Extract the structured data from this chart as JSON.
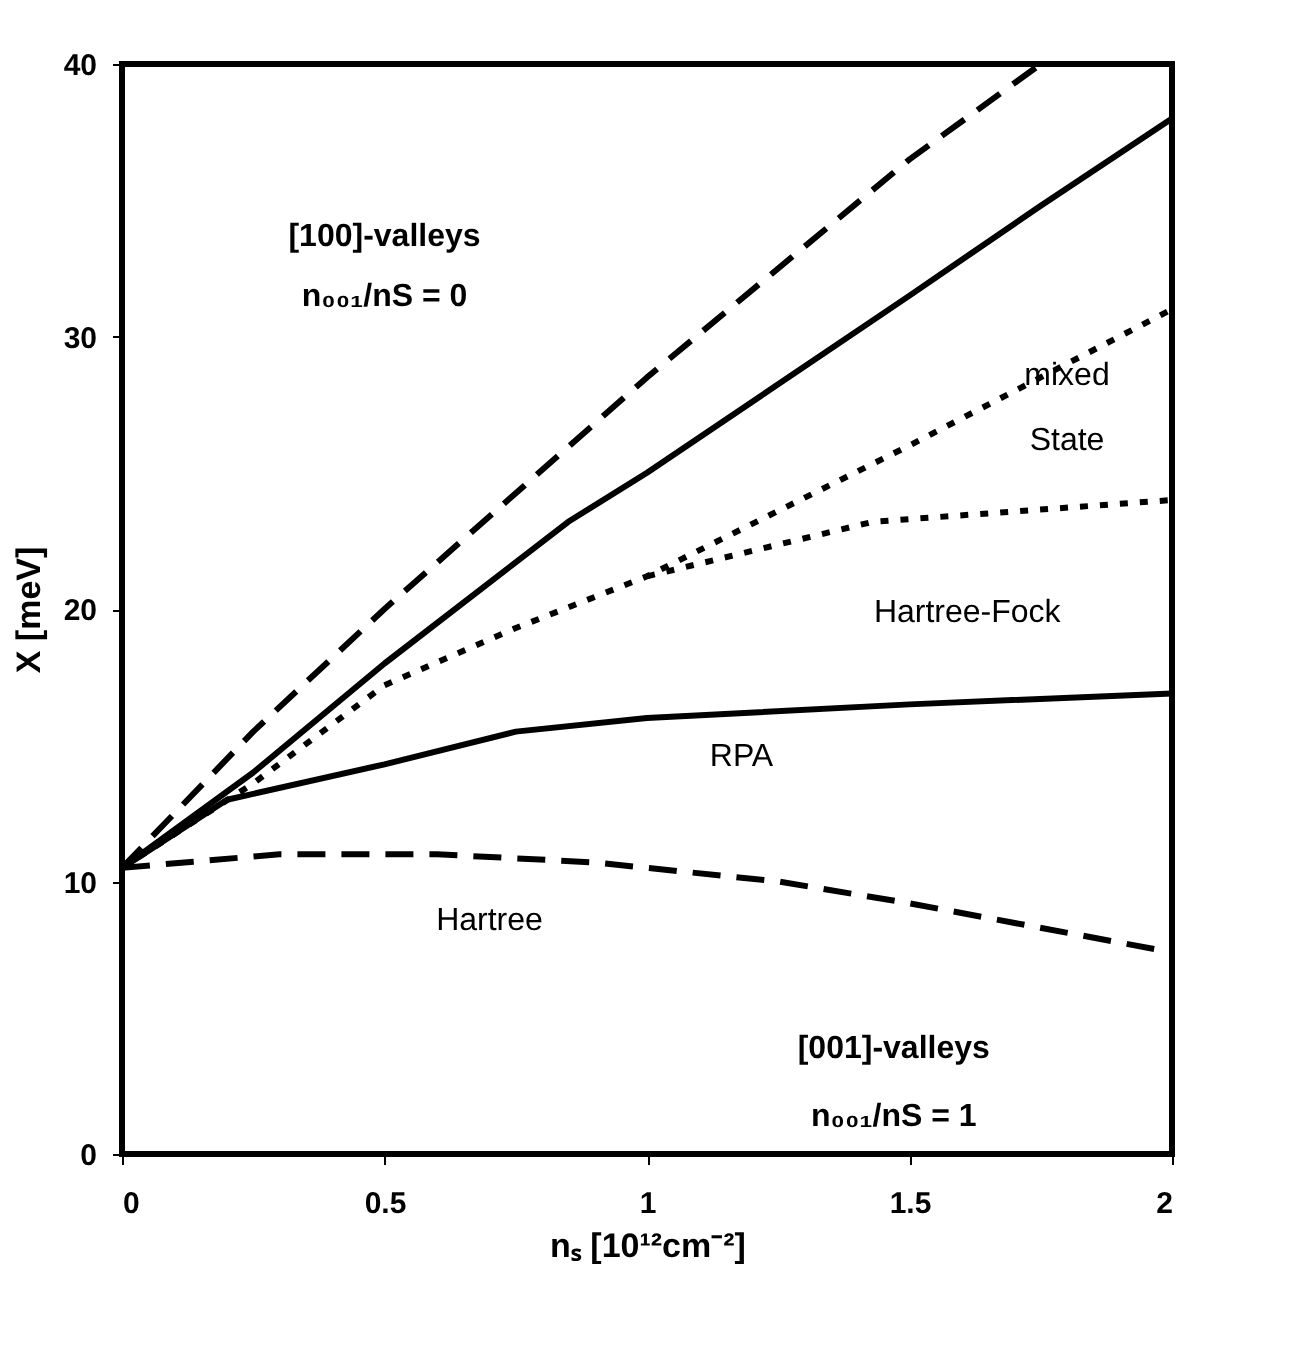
{
  "chart_data": {
    "type": "line",
    "xlabel": "nₛ [10¹²cm⁻²]",
    "ylabel": "X [meV]",
    "xlim": [
      0,
      2
    ],
    "xticks": [
      0,
      0.5,
      1,
      1.5,
      2
    ],
    "ylim": [
      0,
      40
    ],
    "yticks": [
      0,
      10,
      20,
      30,
      40
    ],
    "grid": false,
    "marker": "none",
    "series": [
      {
        "color": "#000000",
        "line_style": "dashed",
        "x": [
          0,
          0.25,
          0.5,
          1,
          1.5,
          1.75
        ],
        "values": [
          10.5,
          15.5,
          20,
          28.5,
          36.5,
          40
        ]
      },
      {
        "color": "#000000",
        "line_style": "solid",
        "x": [
          0,
          0.25,
          0.5,
          0.85,
          1,
          1.5,
          1.75,
          2
        ],
        "values": [
          10.5,
          14,
          18,
          23.2,
          25,
          31.5,
          34.8,
          38
        ]
      },
      {
        "color": "#000000",
        "line_style": "dotted",
        "x": [
          0,
          0.25,
          0.5,
          0.75,
          1,
          1.5,
          2
        ],
        "values": [
          10.5,
          13.6,
          17.2,
          19.3,
          21.2,
          26,
          31
        ]
      },
      {
        "color": "#000000",
        "line_style": "dotted",
        "x": [
          1,
          1.43,
          2
        ],
        "values": [
          21.2,
          23.2,
          24
        ]
      },
      {
        "color": "#000000",
        "line_style": "solid",
        "x": [
          0,
          0.2,
          0.5,
          0.75,
          1,
          1.5,
          2
        ],
        "values": [
          10.5,
          13,
          14.3,
          15.5,
          16,
          16.5,
          16.9
        ]
      },
      {
        "color": "#000000",
        "line_style": "dashed",
        "x": [
          0,
          0.3,
          0.6,
          0.9,
          1.25,
          1.5,
          2
        ],
        "values": [
          10.5,
          11,
          11,
          10.7,
          10,
          9.2,
          7.4
        ]
      }
    ],
    "annotations": [
      "[100]-valleys",
      "n₀₀₁/nS = 0",
      "mixed",
      "State",
      "Hartree-Fock",
      "RPA",
      "Hartree",
      "[001]-valleys",
      "n₀₀₁/nS = 1"
    ]
  }
}
